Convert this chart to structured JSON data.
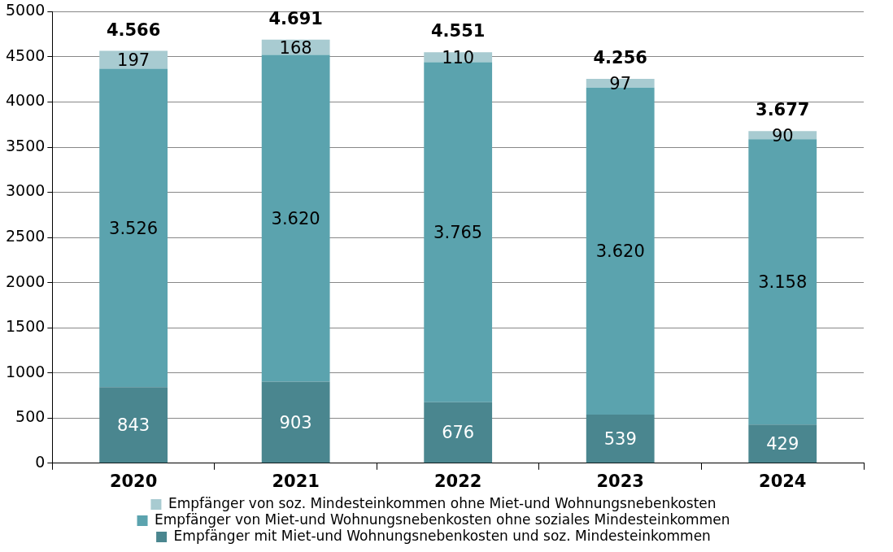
{
  "chart_data": {
    "type": "bar",
    "stacked": true,
    "categories": [
      "2020",
      "2021",
      "2022",
      "2023",
      "2024"
    ],
    "series": [
      {
        "name": "Empfänger mit Miet-und Wohnungsnebenkosten und soz. Mindesteinkommen",
        "color": "#4a868f",
        "values": [
          843,
          903,
          676,
          539,
          429
        ],
        "value_labels": [
          "843",
          "903",
          "676",
          "539",
          "429"
        ]
      },
      {
        "name": "Empfänger von Miet-und Wohnungsnebenkosten ohne soziales Mindesteinkommen",
        "color": "#5ba3ae",
        "values": [
          3526,
          3620,
          3765,
          3620,
          3158
        ],
        "value_labels": [
          "3.526",
          "3.620",
          "3.765",
          "3.620",
          "3.158"
        ]
      },
      {
        "name": "Empfänger von soz. Mindesteinkommen ohne Miet-und Wohnungsnebenkosten",
        "color": "#a8cbd1",
        "values": [
          197,
          168,
          110,
          97,
          90
        ],
        "value_labels": [
          "197",
          "168",
          "110",
          "97",
          "90"
        ]
      }
    ],
    "totals": [
      "4.566",
      "4.691",
      "4.551",
      "4.256",
      "3.677"
    ],
    "ylim": [
      0,
      5000
    ],
    "yticks": [
      0,
      500,
      1000,
      1500,
      2000,
      2500,
      3000,
      3500,
      4000,
      4500,
      5000
    ],
    "grid": "y",
    "legend": "bottom"
  }
}
